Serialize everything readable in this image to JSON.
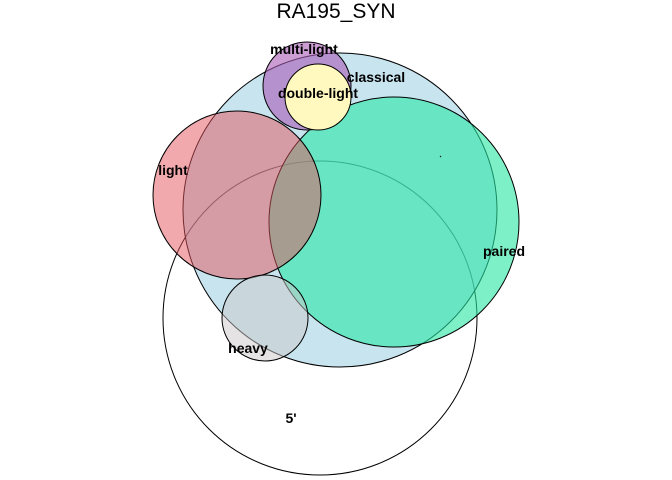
{
  "title": "RA195_SYN",
  "sets": [
    {
      "key": "5prime",
      "label": "5'",
      "fill": "#ffffff"
    },
    {
      "key": "classical",
      "label": "classical",
      "fill": "#8fc9df"
    },
    {
      "key": "paired",
      "label": "paired",
      "fill": "#28e6a4"
    },
    {
      "key": "light",
      "label": "light",
      "fill": "#e5535d"
    },
    {
      "key": "multi_light",
      "label": "multi-light",
      "fill": "#a85bb5"
    },
    {
      "key": "double_light",
      "label": "double-light",
      "fill": "#fff9c0"
    },
    {
      "key": "heavy",
      "label": "heavy",
      "fill": "#cbc8c8"
    }
  ],
  "stroke_color": "#000000"
}
